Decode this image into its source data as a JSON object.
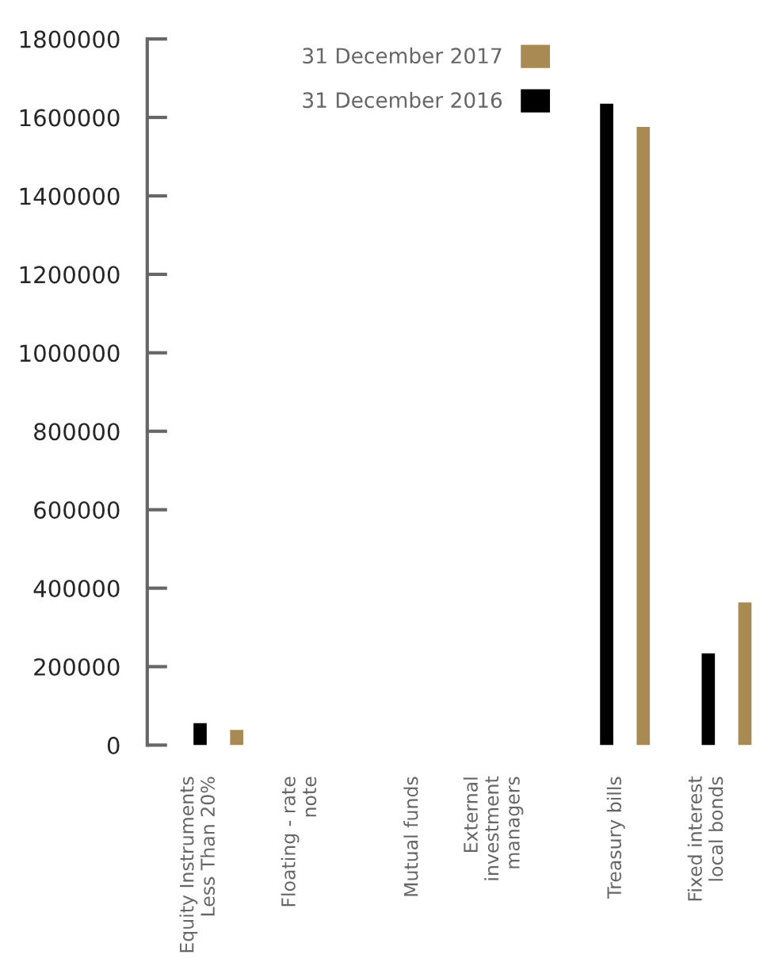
{
  "chart_data": {
    "type": "bar",
    "categories": [
      "Equity Instruments\nLess Than 20%",
      "Floating - rate\nnote",
      "Mutual funds",
      "External\ninvestment\nmanagers",
      "Treasury bills",
      "Fixed interest\nlocal bonds"
    ],
    "series": [
      {
        "name": "31 December 2016",
        "color": "#000000",
        "values": [
          56000,
          null,
          null,
          null,
          1635000,
          234000
        ]
      },
      {
        "name": "31 December 2017",
        "color": "#a88a52",
        "values": [
          39000,
          null,
          null,
          null,
          1576000,
          364000
        ]
      }
    ],
    "ylim": [
      0,
      1800000
    ],
    "yticks": [
      0,
      200000,
      400000,
      600000,
      800000,
      1000000,
      1200000,
      1400000,
      1600000,
      1800000
    ],
    "grid": false,
    "legend": "top"
  }
}
